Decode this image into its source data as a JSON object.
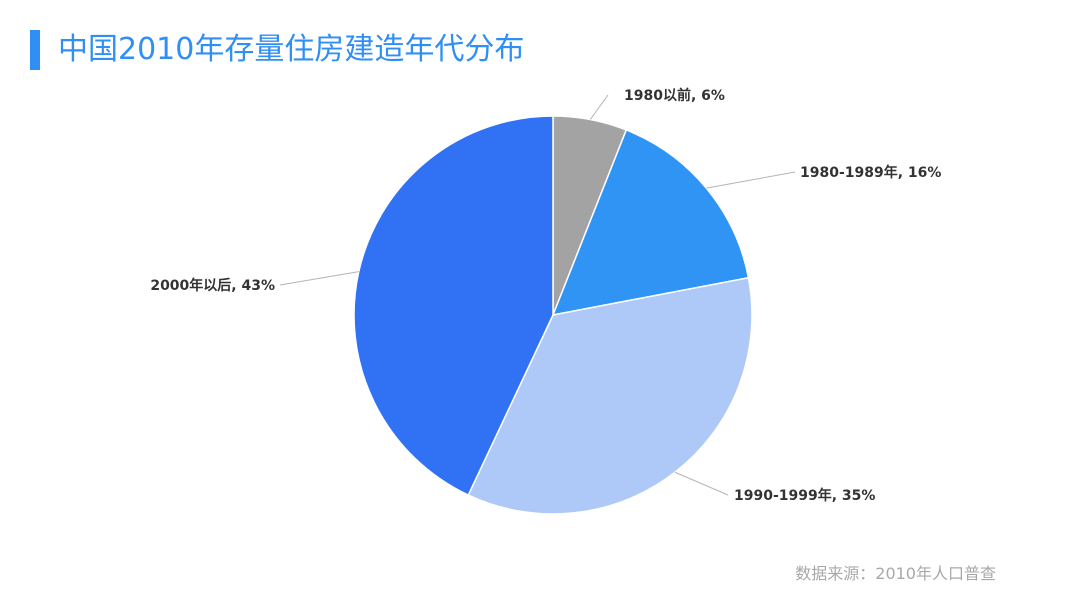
{
  "title": "中国2010年存量住房建造年代分布",
  "source": "数据来源：2010年人口普查",
  "chart_data": {
    "type": "pie",
    "title": "中国2010年存量住房建造年代分布",
    "slices": [
      {
        "label": "1980以前",
        "value": 6,
        "display": "1980以前, 6%",
        "color": "#a3a3a3"
      },
      {
        "label": "1980-1989年",
        "value": 16,
        "display": "1980-1989年, 16%",
        "color": "#2f94f3"
      },
      {
        "label": "1990-1999年",
        "value": 35,
        "display": "1990-1999年, 35%",
        "color": "#aec9f8"
      },
      {
        "label": "2000年以后",
        "value": 43,
        "display": "2000年以后, 43%",
        "color": "#3172f4"
      }
    ],
    "legend": "none",
    "data_labels": "outside with leader lines"
  }
}
